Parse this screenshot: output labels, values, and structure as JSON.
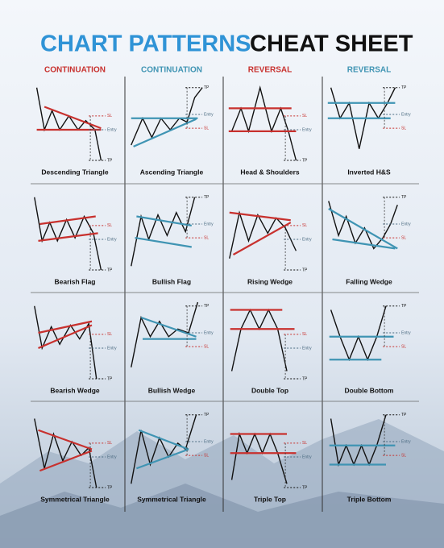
{
  "header": {
    "title_blue": "CHART PATTERNS",
    "title_black": "CHEAT SHEET"
  },
  "columns": [
    "CONTINUATION",
    "CONTINUATION",
    "REVERSAL",
    "REVERSAL"
  ],
  "patterns": [
    {
      "name": "Descending Triangle",
      "labels": [
        "SL",
        "Entry",
        "TP"
      ]
    },
    {
      "name": "Ascending Triangle",
      "labels": [
        "TP",
        "Entry",
        "SL"
      ]
    },
    {
      "name": "Head & Shoulders",
      "labels": [
        "SL",
        "Entry",
        "TP"
      ]
    },
    {
      "name": "Inverted H&S",
      "labels": [
        "TP",
        "Entry",
        "SL"
      ]
    },
    {
      "name": "Bearish Flag",
      "labels": [
        "SL",
        "Entry",
        "TP"
      ]
    },
    {
      "name": "Bullish Flag",
      "labels": [
        "TP",
        "Entry",
        "SL"
      ]
    },
    {
      "name": "Rising Wedge",
      "labels": [
        "SL",
        "Entry",
        "TP"
      ]
    },
    {
      "name": "Falling Wedge",
      "labels": [
        "TP",
        "Entry",
        "SL"
      ]
    },
    {
      "name": "Bearish Wedge",
      "labels": [
        "SL",
        "Entry",
        "TP"
      ]
    },
    {
      "name": "Bullish Wedge",
      "labels": [
        "TP",
        "Entry",
        "SL"
      ]
    },
    {
      "name": "Double Top",
      "labels": [
        "SL",
        "Entry",
        "TP"
      ]
    },
    {
      "name": "Double Bottom",
      "labels": [
        "TP",
        "Entry",
        "SL"
      ]
    },
    {
      "name": "Symmetrical Triangle",
      "labels": [
        "SL",
        "Entry",
        "TP"
      ]
    },
    {
      "name": "Symmetrical Triangle",
      "labels": [
        "TP",
        "Entry",
        "SL"
      ]
    },
    {
      "name": "Triple Top",
      "labels": [
        "SL",
        "Entry",
        "TP"
      ]
    },
    {
      "name": "Triple Bottom",
      "labels": [
        "TP",
        "Entry",
        "SL"
      ]
    }
  ]
}
